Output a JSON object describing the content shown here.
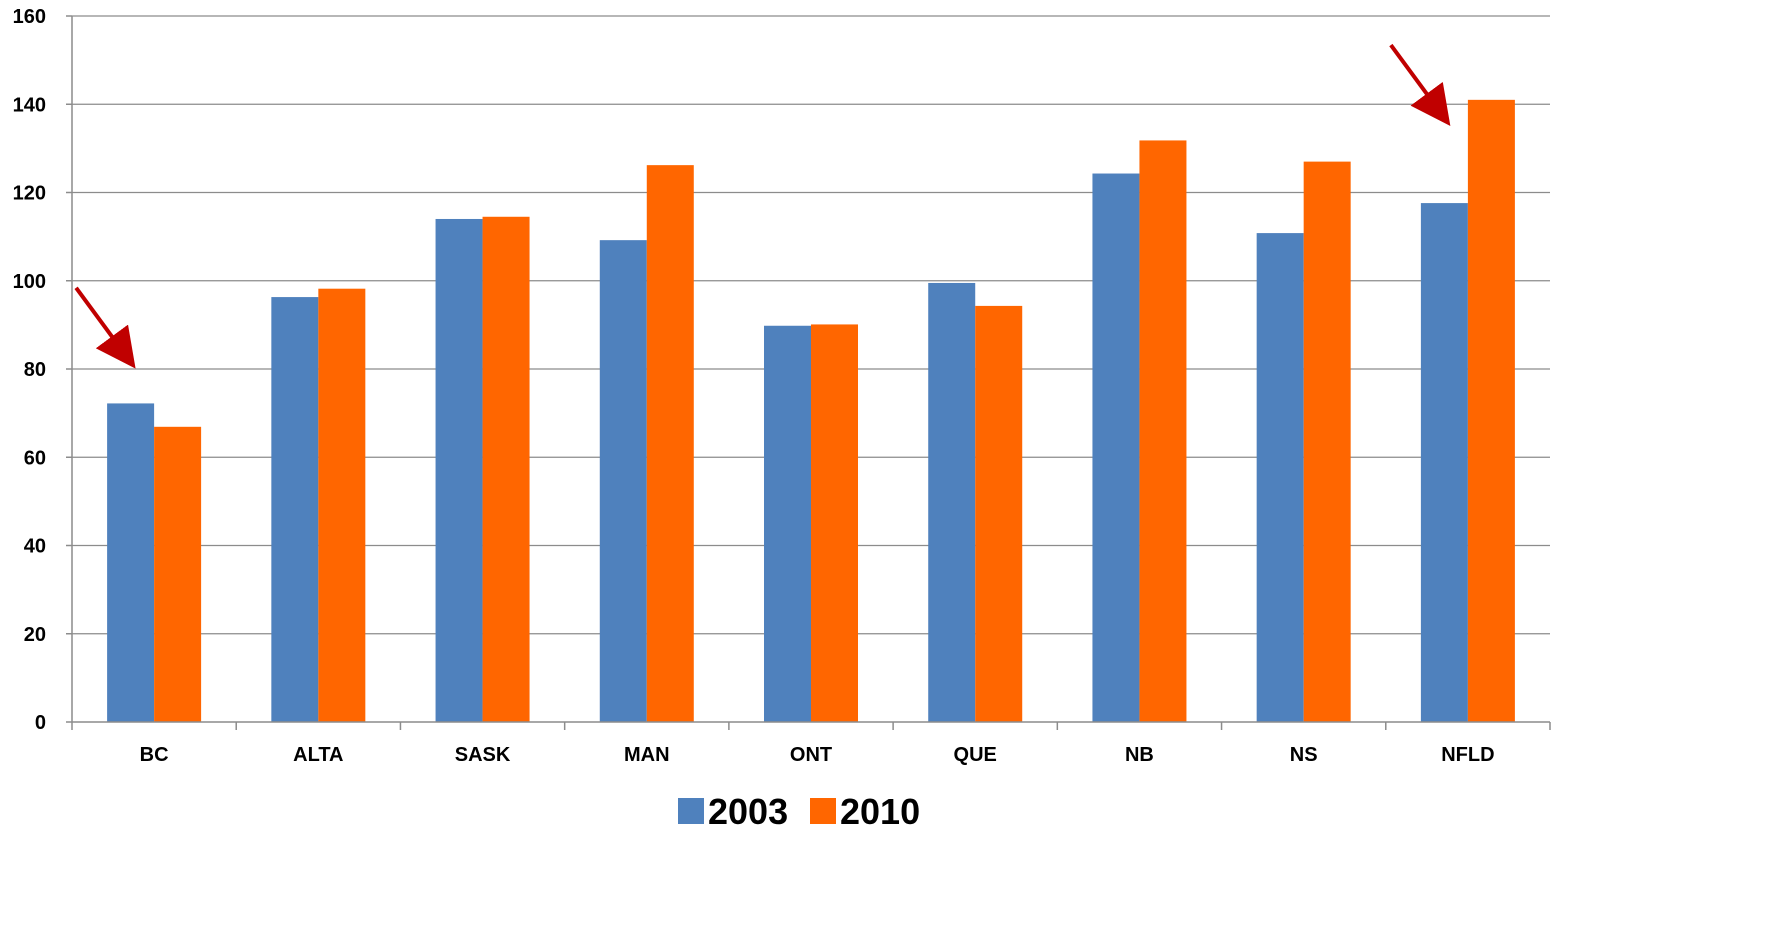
{
  "chart_data": {
    "type": "bar",
    "categories": [
      "BC",
      "ALTA",
      "SASK",
      "MAN",
      "ONT",
      "QUE",
      "NB",
      "NS",
      "NFLD"
    ],
    "series": [
      {
        "name": "2003",
        "color": "#4f81bd",
        "values": [
          72.2,
          96.3,
          114.0,
          109.2,
          89.8,
          99.5,
          124.3,
          110.8,
          117.6
        ]
      },
      {
        "name": "2010",
        "color": "#ff6600",
        "values": [
          66.9,
          98.2,
          114.5,
          126.2,
          90.1,
          94.3,
          131.8,
          127.0,
          141.0
        ]
      }
    ],
    "ylim": [
      0,
      160
    ],
    "y_ticks": [
      "0",
      "20",
      "40",
      "60",
      "80",
      "100",
      "120",
      "140",
      "160"
    ],
    "title": "",
    "xlabel": "",
    "ylabel": "",
    "grid": true,
    "legend_position": "bottom-center",
    "annotations": [
      {
        "type": "arrow",
        "target_category": "BC",
        "color": "#c00000",
        "icon": "arrow-down-right-icon"
      },
      {
        "type": "arrow",
        "target_category": "NFLD",
        "color": "#c00000",
        "icon": "arrow-down-right-icon"
      }
    ]
  }
}
